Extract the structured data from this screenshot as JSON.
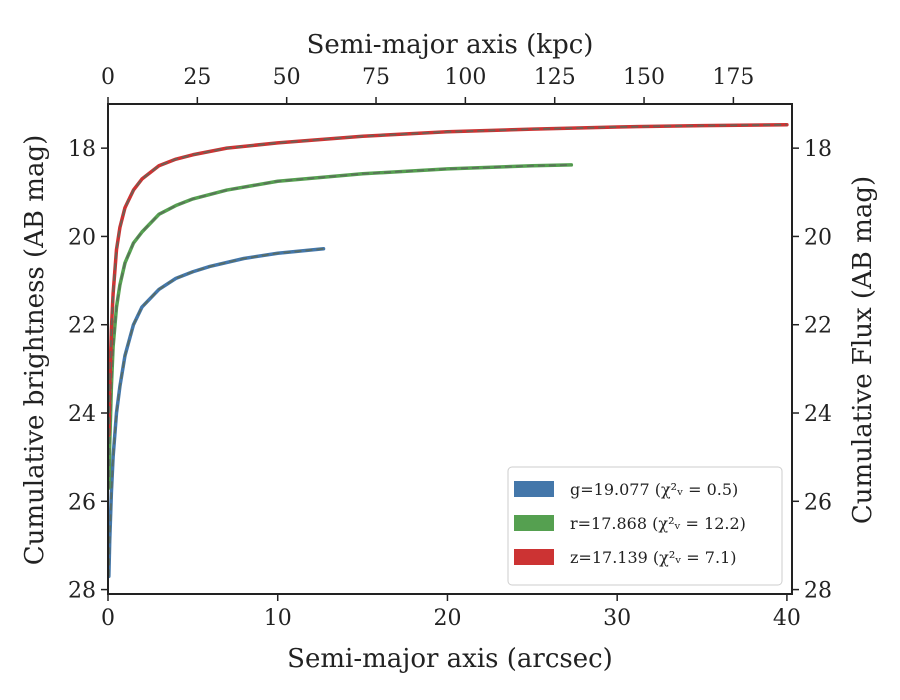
{
  "chart_data": {
    "type": "line",
    "xlabel": "Semi-major axis (arcsec)",
    "x2label": "Semi-major axis (kpc)",
    "ylabel": "Cumulative brightness (AB mag)",
    "y2label": "Cumulative Flux (AB mag)",
    "xlim": [
      0,
      40.3
    ],
    "ylim": [
      28.1,
      17.0
    ],
    "x2lim": [
      0,
      191.4
    ],
    "x_ticks": [
      "0",
      "10",
      "20",
      "30",
      "40"
    ],
    "x2_ticks": [
      "0",
      "25",
      "50",
      "75",
      "100",
      "125",
      "150",
      "175"
    ],
    "y_ticks": [
      "18",
      "20",
      "22",
      "24",
      "26",
      "28"
    ],
    "y2_ticks": [
      "18",
      "20",
      "22",
      "24",
      "26",
      "28"
    ],
    "y_inverted": true,
    "grid": false,
    "legend_position": "lower-right",
    "series": [
      {
        "name": "g=19.077 (χ²ᵥ = 0.5)",
        "color": "#4477aa",
        "x": [
          0.05,
          0.1,
          0.2,
          0.3,
          0.5,
          0.7,
          1.0,
          1.5,
          2.0,
          3.0,
          4.0,
          5.0,
          6.0,
          8.0,
          10.0,
          12.7
        ],
        "y": [
          27.7,
          26.9,
          25.8,
          25.0,
          24.0,
          23.4,
          22.7,
          22.0,
          21.6,
          21.2,
          20.95,
          20.8,
          20.68,
          20.5,
          20.38,
          20.28
        ]
      },
      {
        "name": "r=17.868 (χ²ᵥ = 12.2)",
        "color": "#55a050",
        "x": [
          0.05,
          0.1,
          0.2,
          0.3,
          0.5,
          0.7,
          1.0,
          1.5,
          2.0,
          3.0,
          4.0,
          5.0,
          7.0,
          10.0,
          15.0,
          20.0,
          25.0,
          27.3
        ],
        "y": [
          25.7,
          24.7,
          23.4,
          22.5,
          21.6,
          21.1,
          20.6,
          20.15,
          19.9,
          19.5,
          19.3,
          19.15,
          18.95,
          18.75,
          18.58,
          18.47,
          18.4,
          18.38
        ]
      },
      {
        "name": "z=17.139 (χ²ᵥ = 7.1)",
        "color": "#cc3333",
        "x": [
          0.05,
          0.1,
          0.2,
          0.3,
          0.5,
          0.7,
          1.0,
          1.5,
          2.0,
          3.0,
          4.0,
          5.0,
          7.0,
          10.0,
          15.0,
          20.0,
          25.0,
          30.0,
          35.0,
          40.0
        ],
        "y": [
          24.5,
          23.4,
          22.1,
          21.3,
          20.3,
          19.8,
          19.35,
          18.95,
          18.7,
          18.4,
          18.25,
          18.15,
          18.0,
          17.88,
          17.73,
          17.63,
          17.57,
          17.52,
          17.49,
          17.47
        ]
      }
    ]
  }
}
